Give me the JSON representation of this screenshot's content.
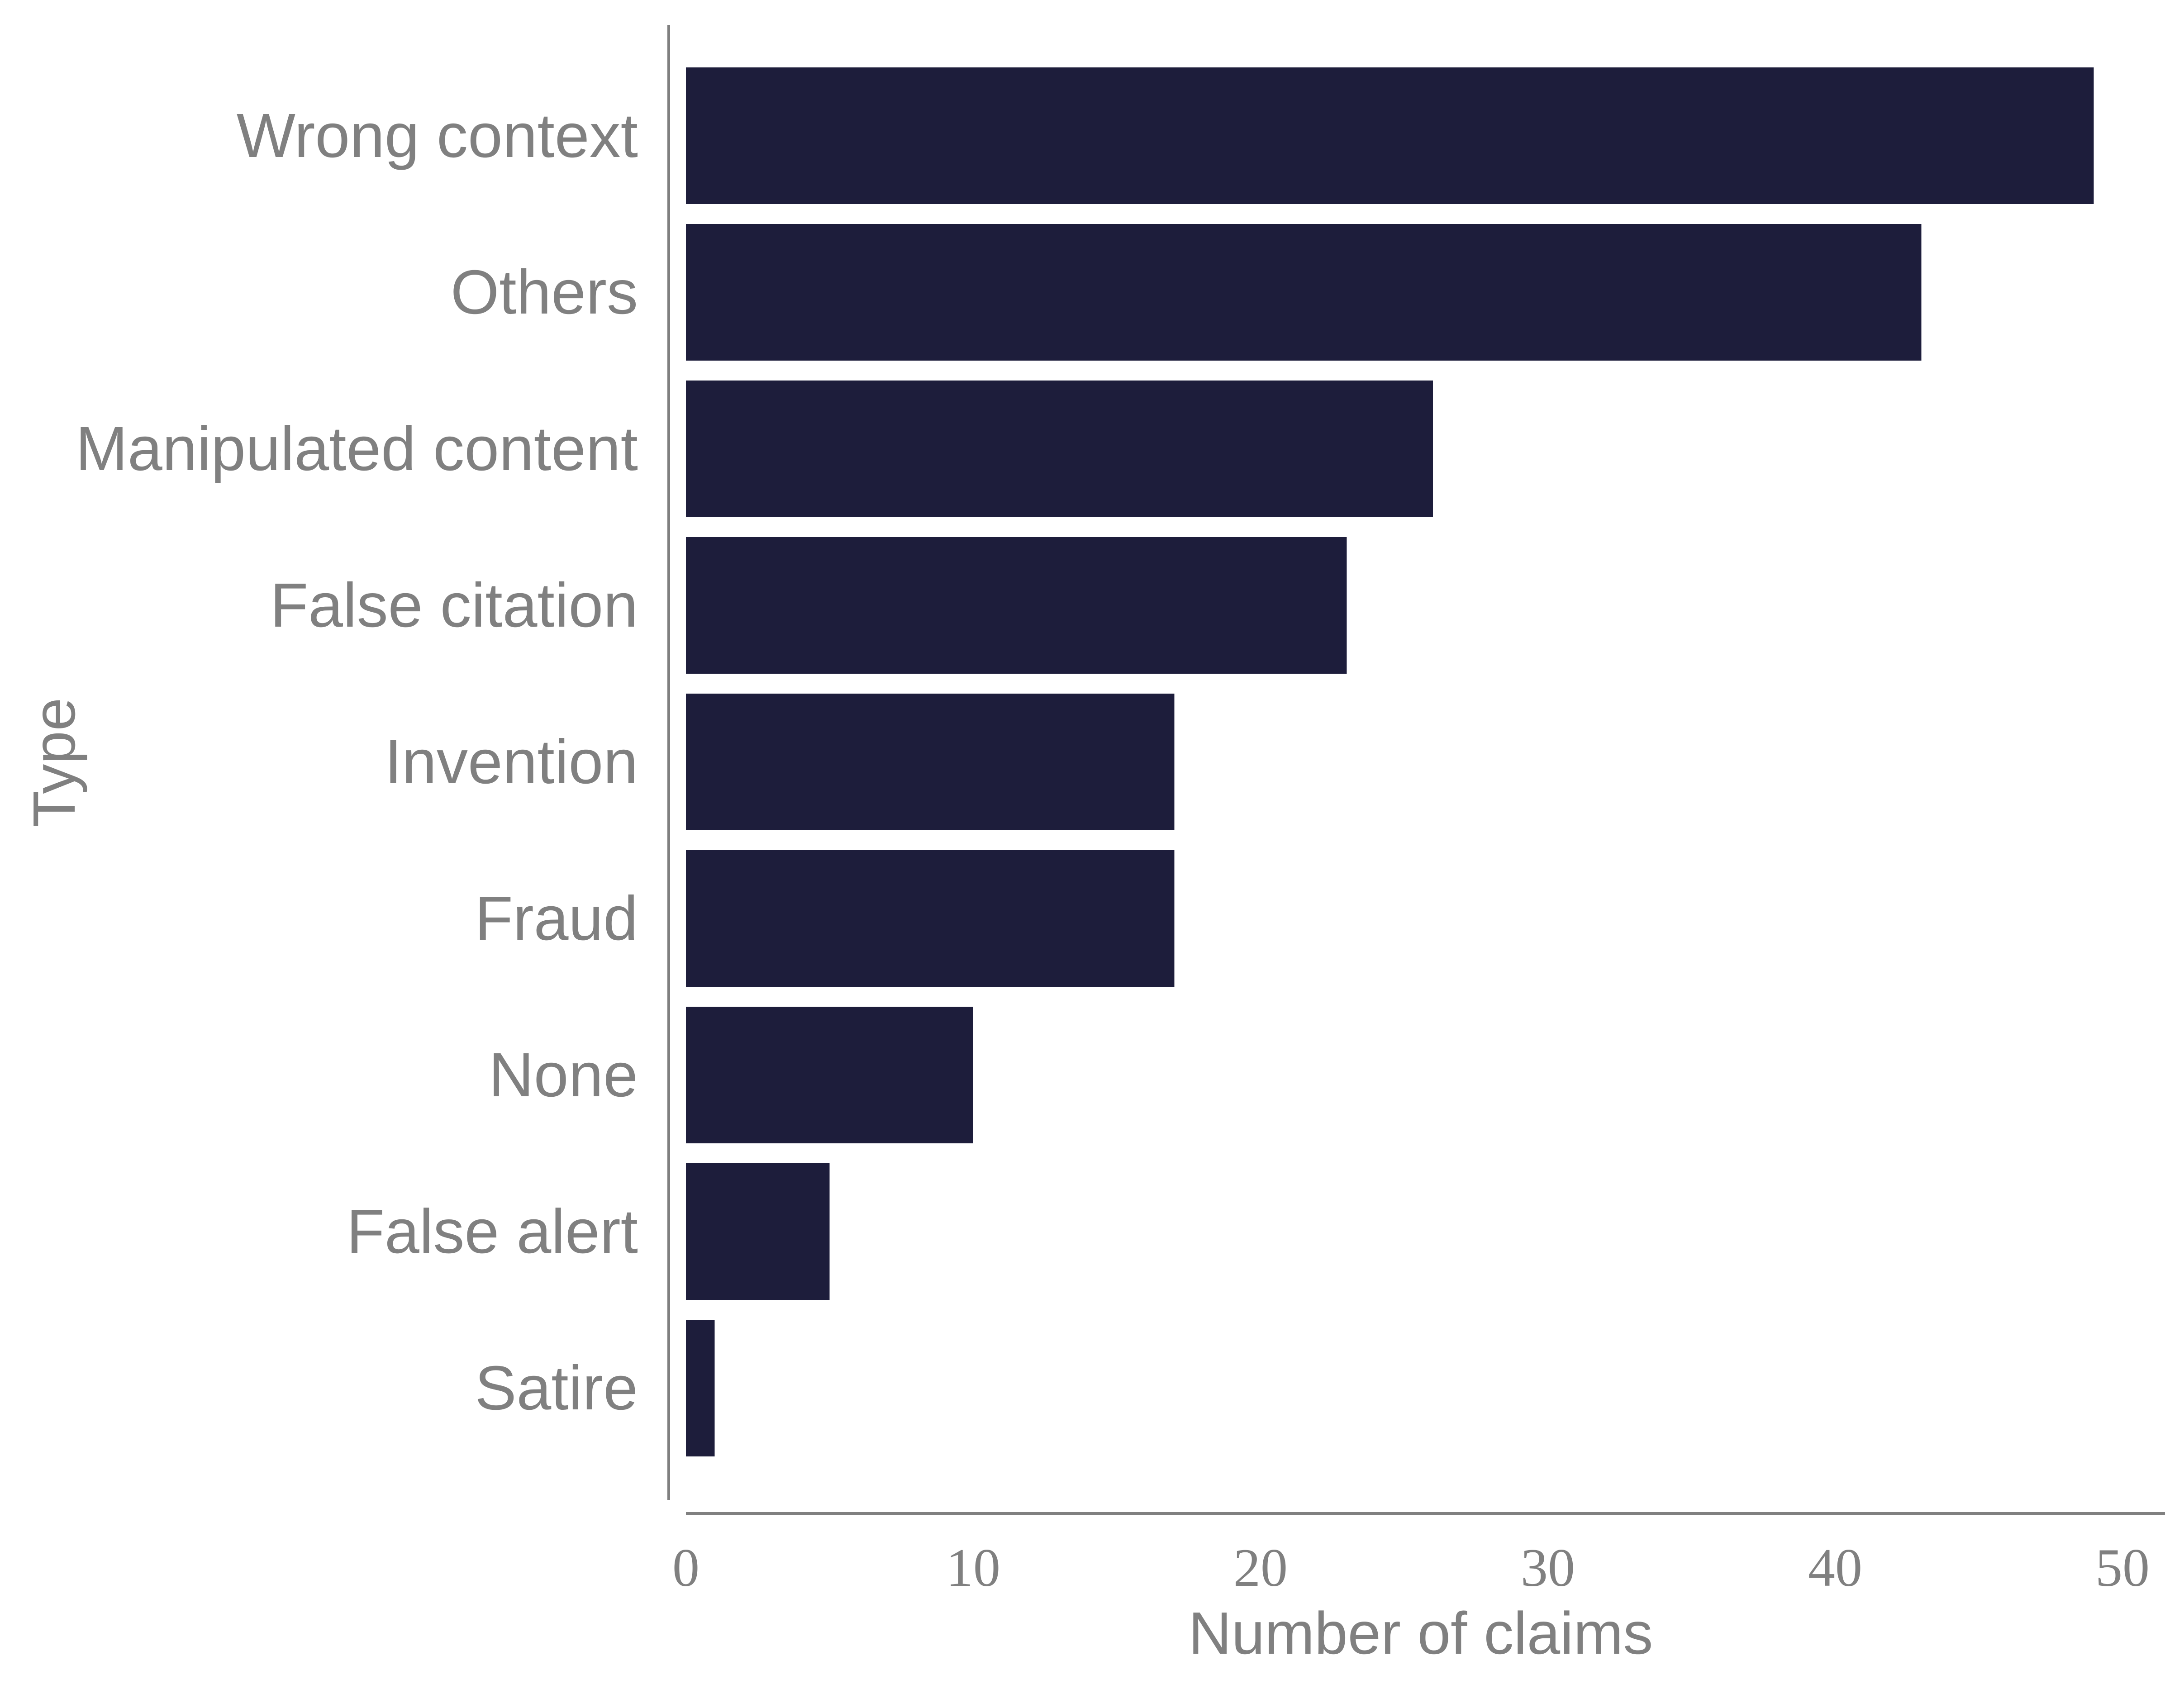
{
  "chart_data": {
    "type": "bar",
    "orientation": "horizontal",
    "categories": [
      "Wrong context",
      "Others",
      "Manipulated content",
      "False citation",
      "Invention",
      "Fraud",
      "None",
      "False alert",
      "Satire"
    ],
    "values": [
      49,
      43,
      26,
      23,
      17,
      17,
      10,
      5,
      1
    ],
    "xlabel": "Number of claims",
    "ylabel": "Type",
    "xlim": [
      0,
      51
    ],
    "xticks": [
      "0",
      "10",
      "20",
      "30",
      "40",
      "50"
    ],
    "grid": false,
    "legend": "none"
  },
  "colors": {
    "bar": "#1d1d3b",
    "axis": "#808080",
    "text": "#808080"
  }
}
